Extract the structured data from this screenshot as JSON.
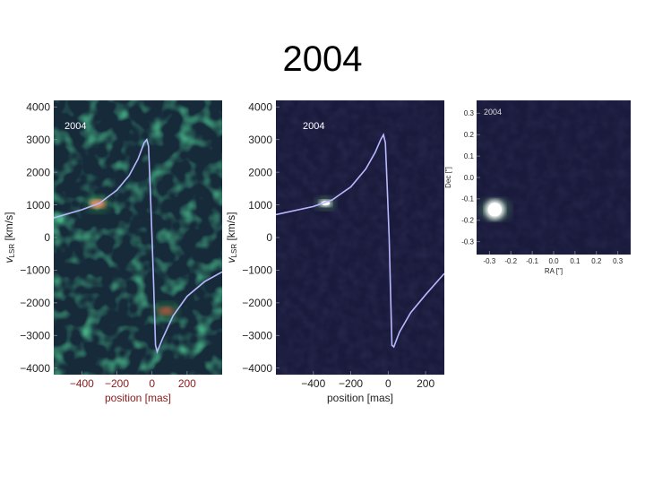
{
  "slide": {
    "title": "2004"
  },
  "chart_data": [
    {
      "type": "heatmap",
      "panel_label": "2004",
      "xlabel": "position [mas]",
      "ylabel": "v_LSR [km/s]",
      "ylabel_main": "v",
      "ylabel_sub": "LSR",
      "ylabel_unit": " [km/s]",
      "xlim": [
        -560,
        400
      ],
      "ylim": [
        -4200,
        4200
      ],
      "xticks": [
        -400,
        -200,
        0,
        200
      ],
      "yticks": [
        4000,
        3000,
        2000,
        1000,
        0,
        -1000,
        -2000,
        -3000,
        -4000
      ],
      "tick_label_color": "#8b1a1a",
      "background": "#162a3a",
      "curve": {
        "color": "#b8b8ff",
        "points": [
          [
            -560,
            600
          ],
          [
            -400,
            850
          ],
          [
            -300,
            1050
          ],
          [
            -200,
            1450
          ],
          [
            -130,
            1900
          ],
          [
            -80,
            2400
          ],
          [
            -45,
            2900
          ],
          [
            -30,
            3000
          ],
          [
            -20,
            2800
          ],
          [
            -10,
            1500
          ],
          [
            0,
            0
          ],
          [
            10,
            -1500
          ],
          [
            20,
            -3300
          ],
          [
            30,
            -3500
          ],
          [
            60,
            -3100
          ],
          [
            120,
            -2400
          ],
          [
            200,
            -1800
          ],
          [
            300,
            -1350
          ],
          [
            400,
            -1050
          ]
        ]
      },
      "emission": [
        {
          "x": -310,
          "y": 1030,
          "intensity": 1.0,
          "color": "#ff8c60"
        },
        {
          "x": 80,
          "y": -2250,
          "intensity": 0.7,
          "color": "#d44a3a"
        }
      ]
    },
    {
      "type": "heatmap",
      "panel_label": "2004",
      "xlabel": "position [mas]",
      "ylabel": "v_LSR [km/s]",
      "ylabel_main": "v",
      "ylabel_sub": "LSR",
      "ylabel_unit": " [km/s]",
      "xlim": [
        -600,
        300
      ],
      "ylim": [
        -4200,
        4200
      ],
      "xticks": [
        -400,
        -200,
        0,
        200
      ],
      "yticks": [
        4000,
        3000,
        2000,
        1000,
        0,
        -1000,
        -2000,
        -3000,
        -4000
      ],
      "tick_label_color": "#222222",
      "background": "#1a1a3c",
      "curve": {
        "color": "#b8b8ff",
        "points": [
          [
            -600,
            700
          ],
          [
            -400,
            950
          ],
          [
            -300,
            1150
          ],
          [
            -200,
            1550
          ],
          [
            -120,
            2100
          ],
          [
            -70,
            2600
          ],
          [
            -40,
            3000
          ],
          [
            -25,
            3150
          ],
          [
            -15,
            2900
          ],
          [
            -5,
            1500
          ],
          [
            5,
            0
          ],
          [
            12,
            -1500
          ],
          [
            20,
            -3300
          ],
          [
            30,
            -3350
          ],
          [
            60,
            -2900
          ],
          [
            120,
            -2300
          ],
          [
            200,
            -1750
          ],
          [
            300,
            -1100
          ]
        ]
      },
      "emission": [
        {
          "x": -335,
          "y": 1050,
          "intensity": 1.0,
          "color": "#ffffff"
        }
      ]
    },
    {
      "type": "heatmap",
      "panel_label": "2004",
      "xlabel": "RA [\"]",
      "ylabel": "Dec [\"]",
      "xlim": [
        -0.36,
        0.36
      ],
      "ylim": [
        -0.36,
        0.36
      ],
      "xticks": [
        -0.3,
        -0.2,
        -0.1,
        0.0,
        0.1,
        0.2,
        0.3
      ],
      "xtick_labels": [
        "-0.3",
        "-0.2",
        "-0.1",
        "0.0",
        "0.1",
        "0.2",
        "0.3"
      ],
      "yticks": [
        0.3,
        0.2,
        0.1,
        0.0,
        -0.1,
        -0.2,
        -0.3
      ],
      "ytick_labels": [
        "0.3",
        "0.2",
        "0.1",
        "0.0",
        "-0.1",
        "-0.2",
        "-0.3"
      ],
      "tick_label_color": "#222222",
      "background": "#1a1a3c",
      "emission": [
        {
          "x": -0.275,
          "y": -0.15,
          "intensity": 1.0,
          "color": "#ffffff"
        }
      ]
    }
  ]
}
